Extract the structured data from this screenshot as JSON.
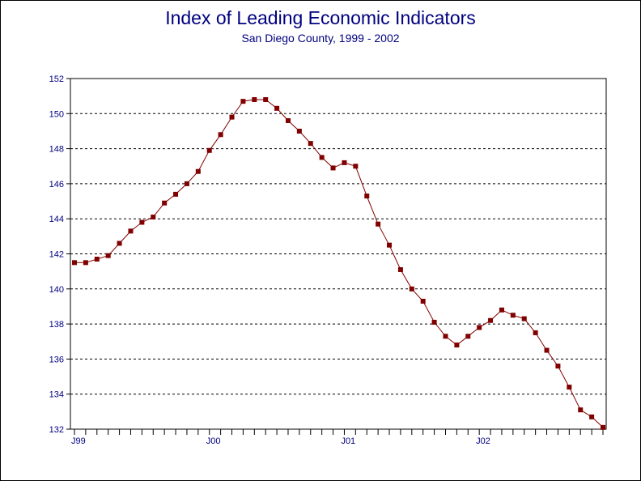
{
  "chart_data": {
    "type": "line",
    "title": "Index of Leading Economic Indicators",
    "subtitle": "San Diego County, 1999 - 2002",
    "xlabel": "",
    "ylabel": "",
    "ylim": [
      132,
      152
    ],
    "y_ticks": [
      132,
      134,
      136,
      138,
      140,
      142,
      144,
      146,
      148,
      150,
      152
    ],
    "x_tick_labels": [
      {
        "label": "J99",
        "month_index": 0
      },
      {
        "label": "J00",
        "month_index": 12
      },
      {
        "label": "J01",
        "month_index": 24
      },
      {
        "label": "J02",
        "month_index": 36
      }
    ],
    "grid": true,
    "line_color": "#800000",
    "marker_color": "#800000",
    "text_color": "#000080",
    "series": [
      {
        "name": "",
        "values": [
          141.5,
          141.5,
          141.7,
          141.9,
          142.6,
          143.3,
          143.8,
          144.1,
          144.9,
          145.4,
          146.0,
          146.7,
          147.9,
          148.8,
          149.8,
          150.7,
          150.8,
          150.8,
          150.3,
          149.6,
          149.0,
          148.3,
          147.5,
          146.9,
          147.2,
          147.0,
          145.3,
          143.7,
          142.5,
          141.1,
          140.0,
          139.3,
          138.1,
          137.3,
          136.8,
          137.3,
          137.8,
          138.2,
          138.8,
          138.5,
          138.3,
          137.5,
          136.5,
          135.6,
          134.4,
          133.1,
          132.7,
          132.1
        ]
      }
    ]
  }
}
